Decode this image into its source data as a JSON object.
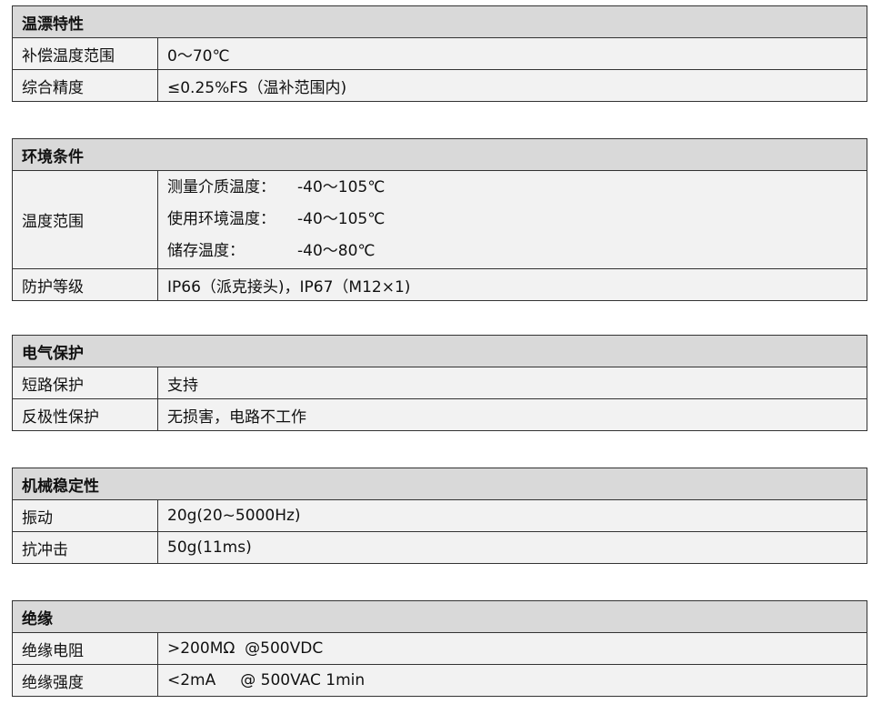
{
  "tables": [
    {
      "title": "温漂特性",
      "rows": [
        {
          "label": "补偿温度范围",
          "value": "0～70℃"
        },
        {
          "label": "综合精度",
          "value": "≤0.25%FS（温补范围内)"
        }
      ]
    },
    {
      "title": "环境条件",
      "temp": {
        "label": "温度范围",
        "lines": [
          {
            "k": "测量介质温度：",
            "v": "-40～105℃"
          },
          {
            "k": "使用环境温度：",
            "v": "-40～105℃"
          },
          {
            "k": "储存温度：",
            "v": "-40～80℃"
          }
        ]
      },
      "rows": [
        {
          "label": "防护等级",
          "value": "IP66（派克接头)，IP67（M12×1)"
        }
      ]
    },
    {
      "title": "电气保护",
      "rows": [
        {
          "label": "短路保护",
          "value": "支持"
        },
        {
          "label": "反极性保护",
          "value": "无损害，电路不工作"
        }
      ]
    },
    {
      "title": "机械稳定性",
      "rows": [
        {
          "label": "振动",
          "value": "20g(20~5000Hz)"
        },
        {
          "label": "抗冲击",
          "value": "50g(11ms)"
        }
      ]
    },
    {
      "title": "绝缘",
      "rows": [
        {
          "label": "绝缘电阻",
          "value": ">200MΩ  @500VDC"
        },
        {
          "label": "绝缘强度",
          "value": "<2mA     @ 500VAC 1min"
        }
      ]
    }
  ]
}
